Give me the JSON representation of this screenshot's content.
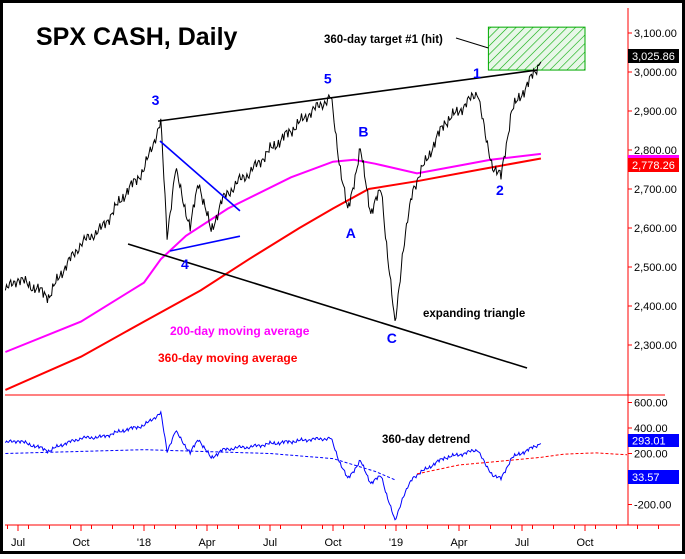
{
  "chart_data": {
    "type": "line",
    "title": "SPX CASH, Daily",
    "x_unit": "months since Jul 2017",
    "x_ticks": [
      {
        "m": 0,
        "label": "Jul"
      },
      {
        "m": 3,
        "label": "Oct"
      },
      {
        "m": 6,
        "label": "'18"
      },
      {
        "m": 9,
        "label": "Apr"
      },
      {
        "m": 12,
        "label": "Jul"
      },
      {
        "m": 15,
        "label": "Oct"
      },
      {
        "m": 18,
        "label": "'19"
      },
      {
        "m": 21,
        "label": "Apr"
      },
      {
        "m": 24,
        "label": "Jul"
      },
      {
        "m": 27,
        "label": "Oct"
      }
    ],
    "price_axis": {
      "ylim": [
        2200,
        3150
      ],
      "ticks": [
        {
          "v": 3100,
          "label": "3,100.00"
        },
        {
          "v": 3000,
          "label": "3,000.00"
        },
        {
          "v": 2900,
          "label": "2,900.00"
        },
        {
          "v": 2800,
          "label": "2,800.00"
        },
        {
          "v": 2700,
          "label": "2,700.00"
        },
        {
          "v": 2600,
          "label": "2,600.00"
        },
        {
          "v": 2500,
          "label": "2,500.00"
        },
        {
          "v": 2400,
          "label": "2,400.00"
        },
        {
          "v": 2300,
          "label": "2,300.00"
        }
      ]
    },
    "detrend_axis": {
      "ylim": [
        -270,
        700
      ],
      "ticks": [
        {
          "v": 600,
          "label": "600.00"
        },
        {
          "v": 400,
          "label": "400.00"
        },
        {
          "v": 200,
          "label": "200.00"
        },
        {
          "v": -200,
          "label": "-200.00"
        }
      ]
    },
    "series": [
      {
        "name": "SPX CASH",
        "color": "#000000",
        "points": [
          [
            -0.6,
            2440
          ],
          [
            0,
            2470
          ],
          [
            1.5,
            2425
          ],
          [
            2,
            2480
          ],
          [
            3,
            2560
          ],
          [
            4,
            2600
          ],
          [
            5,
            2680
          ],
          [
            6,
            2750
          ],
          [
            6.8,
            2872
          ],
          [
            7.1,
            2580
          ],
          [
            7.5,
            2750
          ],
          [
            8.2,
            2600
          ],
          [
            8.6,
            2720
          ],
          [
            9.2,
            2590
          ],
          [
            9.7,
            2670
          ],
          [
            10.5,
            2720
          ],
          [
            11,
            2740
          ],
          [
            12,
            2800
          ],
          [
            13,
            2850
          ],
          [
            14,
            2900
          ],
          [
            14.9,
            2935
          ],
          [
            15.3,
            2770
          ],
          [
            15.7,
            2640
          ],
          [
            16.3,
            2800
          ],
          [
            16.8,
            2640
          ],
          [
            17.3,
            2700
          ],
          [
            17.6,
            2530
          ],
          [
            17.95,
            2350
          ],
          [
            18.3,
            2530
          ],
          [
            18.8,
            2700
          ],
          [
            19.5,
            2780
          ],
          [
            20.3,
            2870
          ],
          [
            21,
            2900
          ],
          [
            21.9,
            2950
          ],
          [
            22.3,
            2820
          ],
          [
            22.6,
            2760
          ],
          [
            23,
            2730
          ],
          [
            23.5,
            2900
          ],
          [
            24.5,
            2990
          ],
          [
            24.9,
            3025.86
          ]
        ]
      },
      {
        "name": "200-day moving average",
        "color": "#ff00ff",
        "points": [
          [
            -0.6,
            2282
          ],
          [
            3,
            2360
          ],
          [
            6,
            2460
          ],
          [
            6.8,
            2520
          ],
          [
            8,
            2580
          ],
          [
            10,
            2650
          ],
          [
            13,
            2730
          ],
          [
            15,
            2770
          ],
          [
            16,
            2775
          ],
          [
            17,
            2765
          ],
          [
            19,
            2740
          ],
          [
            21,
            2760
          ],
          [
            22.5,
            2775
          ],
          [
            24.9,
            2790
          ]
        ]
      },
      {
        "name": "360-day moving average",
        "color": "#ff0000",
        "points": [
          [
            -0.6,
            2185
          ],
          [
            3,
            2270
          ],
          [
            6,
            2360
          ],
          [
            8.7,
            2440
          ],
          [
            11,
            2520
          ],
          [
            13.4,
            2600
          ],
          [
            15,
            2650
          ],
          [
            16.7,
            2700
          ],
          [
            19,
            2720
          ],
          [
            22,
            2750
          ],
          [
            24.9,
            2778.26
          ]
        ]
      }
    ],
    "detrend": {
      "name": "360-day detrend",
      "color": "#0000ff",
      "last": "293.01",
      "baseline_last": "33.57"
    },
    "detrend_baseline": {
      "color": "#0000ff",
      "future_color": "#ff0000",
      "points": [
        [
          -0.6,
          200
        ],
        [
          6,
          230
        ],
        [
          12,
          200
        ],
        [
          15,
          160
        ],
        [
          17,
          60
        ],
        [
          18,
          -10
        ],
        [
          19,
          40
        ],
        [
          21,
          110
        ],
        [
          23,
          140
        ],
        [
          24.9,
          170
        ],
        [
          26,
          195
        ],
        [
          27.5,
          205
        ],
        [
          29,
          190
        ]
      ]
    },
    "target_box": {
      "label": "360-day target #1 (hit)",
      "m": [
        22.4,
        27
      ],
      "v": [
        3005,
        3115
      ],
      "color": "#00aa00"
    },
    "trendlines": [
      {
        "name": "upper-trendline",
        "color": "#000000",
        "from": [
          6.67,
          2874
        ],
        "to": [
          24.71,
          3005
        ]
      },
      {
        "name": "blue-upper",
        "color": "#0000ff",
        "from": [
          6.76,
          2823
        ],
        "to": [
          10.57,
          2644
        ]
      },
      {
        "name": "blue-lower",
        "color": "#0000ff",
        "from": [
          7.24,
          2541
        ],
        "to": [
          10.57,
          2579
        ]
      },
      {
        "name": "lower-trendline",
        "color": "#000000",
        "from": [
          5.24,
          2559
        ],
        "to": [
          24.24,
          2241
        ]
      }
    ],
    "wave_labels": [
      {
        "text": "3",
        "m": 6.55,
        "v": 2915
      },
      {
        "text": "4",
        "m": 7.95,
        "v": 2495
      },
      {
        "text": "5",
        "m": 14.75,
        "v": 2970
      },
      {
        "text": "A",
        "m": 15.85,
        "v": 2575
      },
      {
        "text": "B",
        "m": 16.45,
        "v": 2835
      },
      {
        "text": "C",
        "m": 17.8,
        "v": 2305
      },
      {
        "text": "1",
        "m": 21.85,
        "v": 2985
      },
      {
        "text": "2",
        "m": 22.95,
        "v": 2685
      }
    ],
    "annotations": [
      {
        "text": "expanding triangle",
        "color": "#000000"
      },
      {
        "text": "200-day moving average",
        "color": "#ff00ff"
      },
      {
        "text": "360-day moving average",
        "color": "#ff0000"
      }
    ],
    "last_values": {
      "price": "3,025.86",
      "ma360": "2,778.26"
    }
  }
}
